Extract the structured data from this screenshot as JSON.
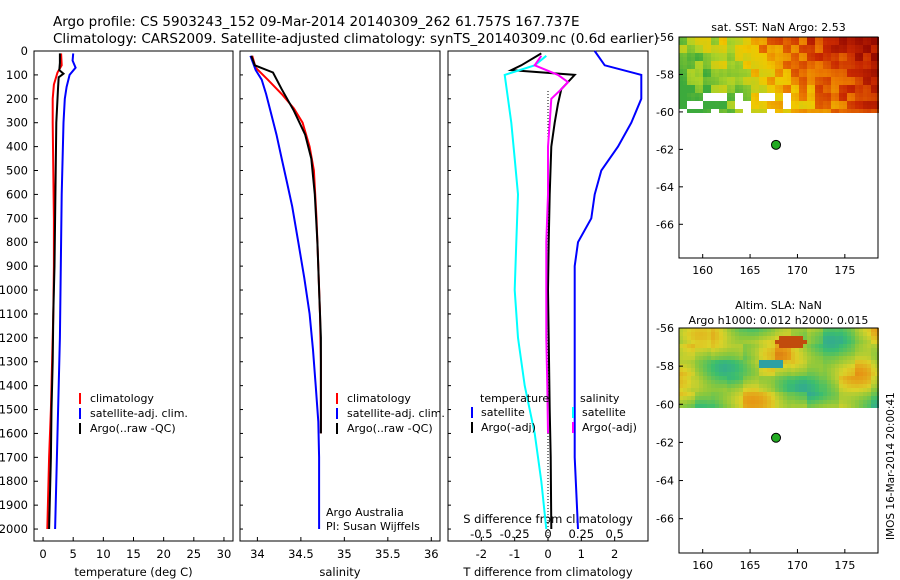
{
  "header": {
    "line1": "Argo profile: CS 5903243_152 09-Mar-2014 20140309_262 61.757S 167.737E",
    "line2": "Climatology: CARS2009. Satellite-adjusted climatology: synTS_20140309.nc (0.6d earlier)"
  },
  "side_stamp": "IMOS 16-Mar-2014 20:00:41",
  "colors": {
    "climatology": "#ff0000",
    "satellite": "#0000ff",
    "argo": "#000000",
    "sal_satellite": "#00ffff",
    "sal_argo": "#ff00ff",
    "float_marker": "#22aa22"
  },
  "chart_data": [
    {
      "type": "line",
      "id": "temperature",
      "xlabel": "temperature (deg C)",
      "ylabel": "",
      "xlim": [
        -1.5,
        31.5
      ],
      "ylim": [
        2050,
        0
      ],
      "xticks": [
        0,
        5,
        10,
        15,
        20,
        25,
        30
      ],
      "yticks": [
        0,
        100,
        200,
        300,
        400,
        500,
        600,
        700,
        800,
        900,
        1000,
        1100,
        1200,
        1300,
        1400,
        1500,
        1600,
        1700,
        1800,
        1900,
        2000
      ],
      "legend": [
        "climatology",
        "satellite-adj. clim.",
        "Argo(..raw -QC)"
      ],
      "series": [
        {
          "name": "climatology",
          "color": "#ff0000",
          "points": [
            [
              3.0,
              10
            ],
            [
              3.1,
              60
            ],
            [
              2.4,
              90
            ],
            [
              1.8,
              140
            ],
            [
              1.6,
              200
            ],
            [
              1.6,
              300
            ],
            [
              1.7,
              500
            ],
            [
              1.8,
              700
            ],
            [
              1.8,
              900
            ],
            [
              1.7,
              1100
            ],
            [
              1.5,
              1300
            ],
            [
              1.3,
              1500
            ],
            [
              1.0,
              1700
            ],
            [
              0.8,
              1900
            ],
            [
              0.7,
              2000
            ]
          ]
        },
        {
          "name": "satellite-adj. clim.",
          "color": "#0000ff",
          "points": [
            [
              5.0,
              10
            ],
            [
              4.9,
              40
            ],
            [
              5.4,
              70
            ],
            [
              4.4,
              100
            ],
            [
              3.9,
              150
            ],
            [
              3.6,
              200
            ],
            [
              3.4,
              300
            ],
            [
              3.3,
              400
            ],
            [
              3.2,
              500
            ],
            [
              3.1,
              600
            ],
            [
              3.0,
              800
            ],
            [
              2.9,
              1000
            ],
            [
              2.8,
              1200
            ],
            [
              2.6,
              1400
            ],
            [
              2.5,
              1500
            ],
            [
              2.3,
              1700
            ],
            [
              2.1,
              1900
            ],
            [
              2.0,
              2000
            ]
          ]
        },
        {
          "name": "Argo(..raw -QC)",
          "color": "#000000",
          "points": [
            [
              2.8,
              10
            ],
            [
              2.8,
              50
            ],
            [
              2.7,
              80
            ],
            [
              3.4,
              95
            ],
            [
              2.6,
              110
            ],
            [
              2.5,
              150
            ],
            [
              2.4,
              200
            ],
            [
              2.2,
              300
            ],
            [
              2.1,
              500
            ],
            [
              2.0,
              700
            ],
            [
              1.9,
              900
            ],
            [
              1.7,
              1100
            ],
            [
              1.6,
              1300
            ],
            [
              1.4,
              1500
            ],
            [
              1.3,
              1700
            ],
            [
              1.1,
              1900
            ],
            [
              1.0,
              2000
            ]
          ]
        }
      ]
    },
    {
      "type": "line",
      "id": "salinity",
      "xlabel": "salinity",
      "xlim": [
        33.8,
        36.1
      ],
      "ylim": [
        2050,
        0
      ],
      "xticks": [
        34,
        34.5,
        35,
        35.5,
        36
      ],
      "legend": [
        "climatology",
        "satellite-adj. clim.",
        "Argo(..raw -QC)"
      ],
      "annotation": [
        "Argo Australia",
        "PI: Susan Wijffels"
      ],
      "series": [
        {
          "name": "climatology",
          "color": "#ff0000",
          "points": [
            [
              33.94,
              20
            ],
            [
              33.98,
              70
            ],
            [
              34.12,
              120
            ],
            [
              34.28,
              180
            ],
            [
              34.42,
              240
            ],
            [
              34.52,
              300
            ],
            [
              34.6,
              400
            ],
            [
              34.65,
              500
            ],
            [
              34.68,
              700
            ],
            [
              34.7,
              900
            ],
            [
              34.72,
              1100
            ],
            [
              34.73,
              1300
            ],
            [
              34.73,
              1500
            ],
            [
              34.73,
              1600
            ]
          ]
        },
        {
          "name": "satellite-adj. clim.",
          "color": "#0000ff",
          "points": [
            [
              33.92,
              20
            ],
            [
              33.98,
              80
            ],
            [
              34.05,
              120
            ],
            [
              34.1,
              180
            ],
            [
              34.15,
              250
            ],
            [
              34.22,
              350
            ],
            [
              34.28,
              450
            ],
            [
              34.34,
              550
            ],
            [
              34.4,
              650
            ],
            [
              34.47,
              800
            ],
            [
              34.54,
              950
            ],
            [
              34.6,
              1100
            ],
            [
              34.64,
              1250
            ],
            [
              34.67,
              1400
            ],
            [
              34.7,
              1550
            ],
            [
              34.71,
              1700
            ],
            [
              34.71,
              1850
            ],
            [
              34.71,
              2000
            ]
          ]
        },
        {
          "name": "Argo(..raw -QC)",
          "color": "#000000",
          "points": [
            [
              33.93,
              20
            ],
            [
              33.97,
              60
            ],
            [
              34.18,
              90
            ],
            [
              34.28,
              160
            ],
            [
              34.42,
              250
            ],
            [
              34.55,
              350
            ],
            [
              34.62,
              450
            ],
            [
              34.66,
              600
            ],
            [
              34.69,
              800
            ],
            [
              34.71,
              1000
            ],
            [
              34.73,
              1200
            ],
            [
              34.73,
              1400
            ],
            [
              34.73,
              1600
            ]
          ]
        }
      ]
    },
    {
      "type": "line",
      "id": "difference",
      "xlabel": "T difference from climatology",
      "secondary_xlabel": "S difference from climatology",
      "xlim": [
        -3,
        3
      ],
      "ylim": [
        2050,
        0
      ],
      "xticks": [
        -2,
        -1,
        0,
        1,
        2
      ],
      "secondary_xticks": [
        {
          "label": "-0.5",
          "x": -2
        },
        {
          "label": "-0.25",
          "x": -1
        },
        {
          "label": "0",
          "x": 0
        },
        {
          "label": "0.25",
          "x": 1
        },
        {
          "label": "0.5",
          "x": 2
        }
      ],
      "legend": {
        "temperature_title": "temperature",
        "salinity_title": "salinity",
        "entries": [
          "satellite",
          "Argo(-adj)",
          "satellite",
          "Argo(-adj)"
        ]
      },
      "series": [
        {
          "name": "satellite",
          "color": "#0000ff",
          "points": [
            [
              1.4,
              0
            ],
            [
              1.7,
              60
            ],
            [
              2.8,
              100
            ],
            [
              2.8,
              200
            ],
            [
              2.5,
              300
            ],
            [
              2.1,
              400
            ],
            [
              1.6,
              500
            ],
            [
              1.4,
              600
            ],
            [
              1.3,
              700
            ],
            [
              0.9,
              800
            ],
            [
              0.8,
              900
            ],
            [
              0.8,
              1100
            ],
            [
              0.8,
              1400
            ],
            [
              0.8,
              1700
            ],
            [
              0.9,
              2000
            ]
          ]
        },
        {
          "name": "Argo(-adj)",
          "color": "#000000",
          "points": [
            [
              -0.2,
              10
            ],
            [
              -0.8,
              60
            ],
            [
              -1.1,
              80
            ],
            [
              0.8,
              100
            ],
            [
              0.4,
              160
            ],
            [
              0.3,
              220
            ],
            [
              0.2,
              300
            ],
            [
              0.1,
              400
            ],
            [
              0.05,
              600
            ],
            [
              0.02,
              800
            ],
            [
              0,
              1000
            ],
            [
              0.02,
              1200
            ],
            [
              0.05,
              1500
            ],
            [
              0.08,
              1700
            ],
            [
              0.1,
              2000
            ]
          ]
        },
        {
          "name": "satellite",
          "color": "#00ffff",
          "points": [
            [
              -0.05,
              20
            ],
            [
              -0.4,
              60
            ],
            [
              -1.3,
              100
            ],
            [
              -1.2,
              200
            ],
            [
              -1.1,
              300
            ],
            [
              -1.0,
              450
            ],
            [
              -0.9,
              600
            ],
            [
              -0.95,
              800
            ],
            [
              -1.0,
              1000
            ],
            [
              -0.9,
              1200
            ],
            [
              -0.7,
              1400
            ],
            [
              -0.4,
              1600
            ],
            [
              -0.2,
              1800
            ],
            [
              -0.05,
              2000
            ]
          ]
        },
        {
          "name": "Argo(-adj)",
          "color": "#ff00ff",
          "points": [
            [
              -0.2,
              20
            ],
            [
              -0.4,
              60
            ],
            [
              0.3,
              100
            ],
            [
              0.6,
              130
            ],
            [
              0.4,
              160
            ],
            [
              0.1,
              200
            ],
            [
              0.05,
              300
            ],
            [
              0.0,
              400
            ],
            [
              0.0,
              600
            ],
            [
              -0.05,
              800
            ],
            [
              -0.05,
              1000
            ],
            [
              -0.05,
              1200
            ],
            [
              -0.02,
              1400
            ],
            [
              0.0,
              1600
            ]
          ]
        }
      ]
    },
    {
      "type": "heatmap",
      "id": "sst_map",
      "title": "sat. SST: NaN Argo: 2.53",
      "xlim": [
        157.5,
        178.5
      ],
      "ylim": [
        -67.8,
        -56
      ],
      "xticks": [
        160,
        165,
        170,
        175
      ],
      "yticks": [
        -56,
        -58,
        -60,
        -62,
        -64,
        -66
      ],
      "data_rows_lat": [
        -56,
        -60
      ],
      "float_position": {
        "lon": 167.737,
        "lat": -61.757
      }
    },
    {
      "type": "heatmap",
      "id": "sla_map",
      "title": "Altim. SLA: NaN",
      "subtitle": "Argo h1000: 0.012 h2000: 0.015",
      "xlim": [
        157.5,
        178.5
      ],
      "ylim": [
        -67.8,
        -56
      ],
      "xticks": [
        160,
        165,
        170,
        175
      ],
      "yticks": [
        -56,
        -58,
        -60,
        -62,
        -64,
        -66
      ],
      "data_rows_lat": [
        -56,
        -60
      ],
      "float_position": {
        "lon": 167.737,
        "lat": -61.757
      }
    }
  ]
}
